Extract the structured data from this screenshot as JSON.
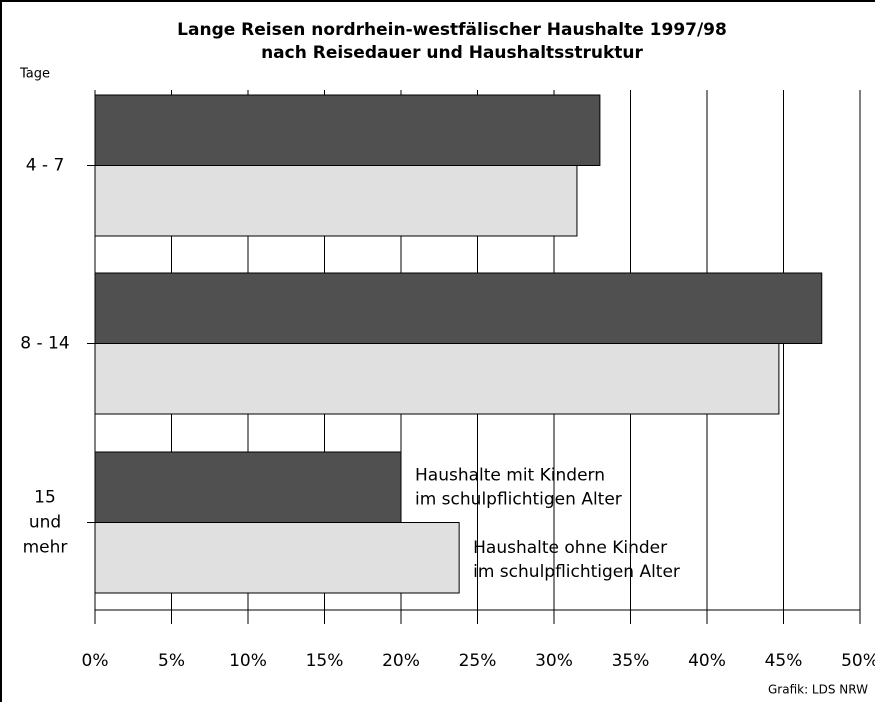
{
  "chart_data": {
    "type": "hbar",
    "title": "Lange Reisen nordrhein-westfälischer Haushalte 1997/98",
    "subtitle": "nach Reisedauer und Haushaltsstruktur",
    "y_axis_label": "Tage",
    "source": "Grafik: LDS NRW",
    "categories": [
      "4 - 7",
      "8 - 14",
      "15\nund\nmehr"
    ],
    "series": [
      {
        "name": "Haushalte mit Kindern\nim schulpflichtigen Alter",
        "color": "#505050",
        "values": [
          33,
          47.5,
          20
        ]
      },
      {
        "name": "Haushalte ohne Kinder\nim schulpflichtigen Alter",
        "color": "#e0e0e0",
        "values": [
          31.5,
          44.7,
          23.8
        ]
      }
    ],
    "xlim": [
      0,
      50
    ],
    "xticks": [
      {
        "value": 0,
        "label": "0%"
      },
      {
        "value": 5,
        "label": "5%"
      },
      {
        "value": 10,
        "label": "10%"
      },
      {
        "value": 15,
        "label": "15%"
      },
      {
        "value": 20,
        "label": "20%"
      },
      {
        "value": 25,
        "label": "25%"
      },
      {
        "value": 30,
        "label": "30%"
      },
      {
        "value": 35,
        "label": "35%"
      },
      {
        "value": 40,
        "label": "40%"
      },
      {
        "value": 45,
        "label": "45%"
      },
      {
        "value": 50,
        "label": "50%"
      }
    ],
    "grid": true
  }
}
